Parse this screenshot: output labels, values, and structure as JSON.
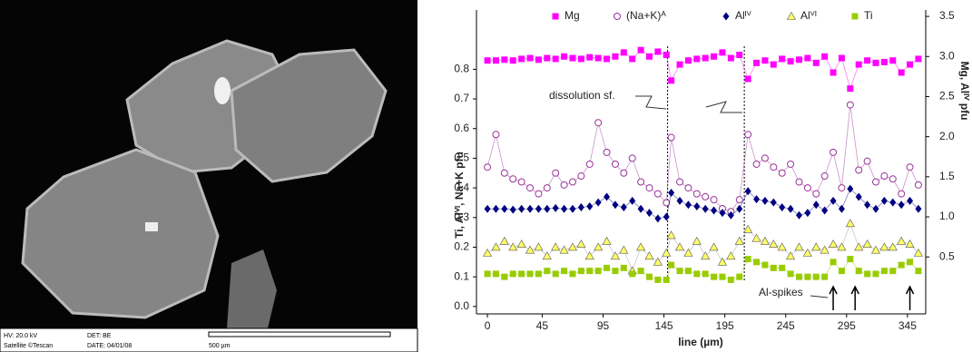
{
  "micrograph": {
    "hv": "HV: 20.0 kV",
    "det": "DET: BE",
    "credit": "Satellite ©Tescan",
    "date": "DATE: 04/01/08",
    "scale": "500 µm"
  },
  "chart_data": {
    "type": "scatter",
    "xlabel": "line (µm)",
    "ylabel": "Ti, Alⱽᴵ, Na+K pfu",
    "y2label": "Mg, Alᴵⱽ pfu",
    "annotations": [
      "dissolution sf.",
      "Al-spikes"
    ],
    "dissolution_lines": [
      148,
      211
    ],
    "spike_arrows": [
      284,
      302,
      347
    ],
    "xlim": [
      -9,
      360
    ],
    "xticks": [
      0,
      45,
      95,
      145,
      195,
      245,
      295,
      345
    ],
    "ylim": [
      -0.025,
      1.0
    ],
    "yticks": [
      {
        "value": 0,
        "label": "0.0"
      },
      0.1,
      0.2,
      0.3,
      0.4,
      0.5,
      0.6,
      0.7,
      0.8
    ],
    "y2lim": [
      -0.21,
      3.58
    ],
    "y2ticks": [
      0.5,
      {
        "value": 1,
        "label": "1.0"
      },
      1.5,
      {
        "value": 2,
        "label": "2.0"
      },
      2.5,
      {
        "value": 3,
        "label": "3.0"
      },
      3.5
    ],
    "x": [
      0,
      7,
      14,
      21,
      28,
      35,
      42,
      49,
      56,
      63,
      70,
      77,
      84,
      91,
      98,
      105,
      112,
      119,
      126,
      133,
      140,
      147,
      151,
      158,
      165,
      172,
      179,
      186,
      193,
      200,
      207,
      214,
      221,
      228,
      235,
      242,
      249,
      256,
      263,
      270,
      277,
      284,
      291,
      298,
      305,
      312,
      319,
      326,
      333,
      340,
      347,
      354
    ],
    "series": [
      {
        "name": "Mg",
        "color": "#ff00ff",
        "marker": "square",
        "axis": "y2",
        "values": [
          2.95,
          2.95,
          2.96,
          2.95,
          2.97,
          2.98,
          2.96,
          2.98,
          2.97,
          3.0,
          2.98,
          2.97,
          2.99,
          2.98,
          2.97,
          3.0,
          3.05,
          2.97,
          3.08,
          3.0,
          3.06,
          3.02,
          2.7,
          2.9,
          2.95,
          2.97,
          2.98,
          3.0,
          3.05,
          2.98,
          3.02,
          2.72,
          2.92,
          2.95,
          2.9,
          2.97,
          2.94,
          2.96,
          2.98,
          2.92,
          3.0,
          2.8,
          2.98,
          2.6,
          2.9,
          2.95,
          2.92,
          2.93,
          2.95,
          2.8,
          2.9,
          2.97
        ]
      },
      {
        "name": "(Na+K)ᴬ",
        "color": "#993399",
        "marker": "circle",
        "values": [
          0.47,
          0.58,
          0.45,
          0.43,
          0.42,
          0.4,
          0.38,
          0.4,
          0.45,
          0.41,
          0.42,
          0.44,
          0.48,
          0.62,
          0.52,
          0.48,
          0.45,
          0.5,
          0.42,
          0.4,
          0.38,
          0.35,
          0.57,
          0.42,
          0.4,
          0.38,
          0.37,
          0.36,
          0.33,
          0.32,
          0.36,
          0.58,
          0.48,
          0.5,
          0.47,
          0.45,
          0.48,
          0.42,
          0.4,
          0.38,
          0.44,
          0.52,
          0.4,
          0.68,
          0.46,
          0.49,
          0.42,
          0.44,
          0.43,
          0.38,
          0.47,
          0.41
        ]
      },
      {
        "name": "Alᴵⱽ",
        "color": "#000080",
        "marker": "diamond",
        "axis": "y2",
        "values": [
          1.1,
          1.1,
          1.1,
          1.09,
          1.1,
          1.1,
          1.1,
          1.1,
          1.11,
          1.1,
          1.1,
          1.12,
          1.13,
          1.18,
          1.25,
          1.15,
          1.12,
          1.2,
          1.1,
          1.05,
          0.98,
          1.0,
          1.3,
          1.2,
          1.15,
          1.13,
          1.1,
          1.08,
          1.05,
          1.02,
          1.1,
          1.32,
          1.22,
          1.2,
          1.18,
          1.12,
          1.1,
          1.02,
          1.05,
          1.15,
          1.08,
          1.2,
          1.1,
          1.35,
          1.25,
          1.15,
          1.1,
          1.2,
          1.18,
          1.15,
          1.2,
          1.1
        ]
      },
      {
        "name": "Alⱽᴵ",
        "color": "#ffff66",
        "marker": "triangle",
        "values": [
          0.18,
          0.2,
          0.22,
          0.2,
          0.21,
          0.19,
          0.2,
          0.17,
          0.2,
          0.19,
          0.2,
          0.21,
          0.17,
          0.2,
          0.22,
          0.17,
          0.19,
          0.12,
          0.2,
          0.17,
          0.15,
          0.18,
          0.24,
          0.2,
          0.18,
          0.22,
          0.17,
          0.2,
          0.15,
          0.17,
          0.22,
          0.26,
          0.23,
          0.22,
          0.21,
          0.2,
          0.17,
          0.2,
          0.18,
          0.2,
          0.19,
          0.21,
          0.2,
          0.28,
          0.2,
          0.21,
          0.19,
          0.2,
          0.2,
          0.22,
          0.21,
          0.18
        ]
      },
      {
        "name": "Ti",
        "color": "#99cc00",
        "marker": "square",
        "values": [
          0.11,
          0.11,
          0.1,
          0.11,
          0.11,
          0.11,
          0.11,
          0.12,
          0.11,
          0.12,
          0.11,
          0.12,
          0.12,
          0.12,
          0.13,
          0.12,
          0.13,
          0.11,
          0.12,
          0.1,
          0.09,
          0.09,
          0.14,
          0.12,
          0.12,
          0.11,
          0.11,
          0.1,
          0.1,
          0.09,
          0.1,
          0.16,
          0.15,
          0.14,
          0.13,
          0.13,
          0.11,
          0.1,
          0.1,
          0.1,
          0.1,
          0.15,
          0.12,
          0.16,
          0.12,
          0.11,
          0.11,
          0.12,
          0.12,
          0.14,
          0.15,
          0.12
        ]
      }
    ]
  }
}
